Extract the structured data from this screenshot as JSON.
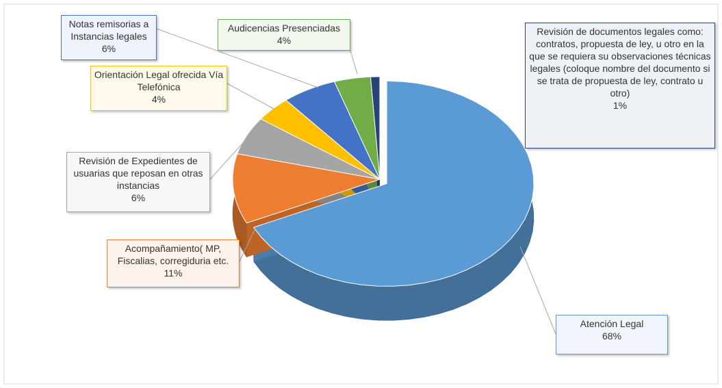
{
  "chart_data": {
    "type": "pie",
    "categories": [
      "Atención Legal",
      "Acompañamiento( MP, Fiscalias, corregiduria etc.",
      "Revisión de Expedientes de usuarias  que reposan en otras  instancias",
      "Orientación  Legal ofrecida Vía  Telefónica",
      "Notas remisorias a Instancias legales",
      "Audicencias Presenciadas",
      "Revisión   de documentos legales como: contratos, propuesta de ley, u otro en la que se requiera  su observaciones técnicas legales (coloque nombre del documento si se trata de propuesta de ley, contrato u otro)"
    ],
    "values": [
      68,
      11,
      6,
      4,
      6,
      4,
      1
    ],
    "value_labels": [
      "68%",
      "11%",
      "6%",
      "4%",
      "6%",
      "4%",
      "1%"
    ],
    "colors": [
      "#5b9bd5",
      "#ed7d31",
      "#a5a5a5",
      "#ffc000",
      "#4472c4",
      "#70ad47",
      "#264478"
    ]
  }
}
